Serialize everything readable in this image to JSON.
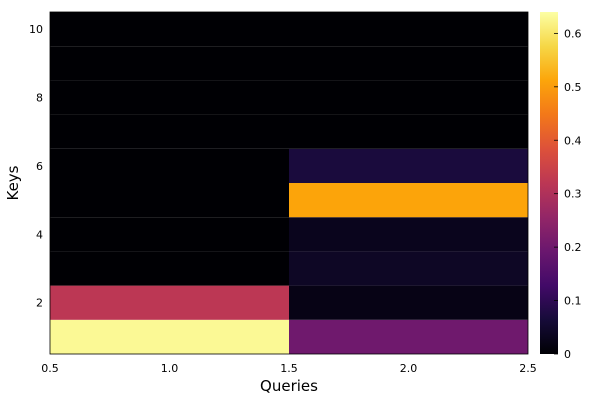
{
  "chart_data": {
    "type": "heatmap",
    "title": "",
    "xlabel": "Queries",
    "ylabel": "Keys",
    "x_columns": [
      1,
      2
    ],
    "y_rows": [
      1,
      2,
      3,
      4,
      5,
      6,
      7,
      8,
      9,
      10
    ],
    "xlim": [
      0.5,
      2.5
    ],
    "ylim": [
      0.5,
      10.5
    ],
    "x_ticks": [
      "0.5",
      "1.0",
      "1.5",
      "2.0",
      "2.5"
    ],
    "x_tick_values": [
      0.5,
      1.0,
      1.5,
      2.0,
      2.5
    ],
    "y_ticks": [
      "2",
      "4",
      "6",
      "8",
      "10"
    ],
    "y_tick_values": [
      2,
      4,
      6,
      8,
      10
    ],
    "values": [
      [
        0.63,
        0.2
      ],
      [
        0.32,
        0.02
      ],
      [
        0.0,
        0.04
      ],
      [
        0.0,
        0.03
      ],
      [
        0.0,
        0.51
      ],
      [
        0.0,
        0.07
      ],
      [
        0.0,
        0.0
      ],
      [
        0.0,
        0.0
      ],
      [
        0.0,
        0.0
      ],
      [
        0.0,
        0.0
      ]
    ],
    "colormap": "inferno",
    "colorbar_range": [
      0,
      0.64
    ],
    "colorbar_ticks": [
      "0",
      "0.1",
      "0.2",
      "0.3",
      "0.4",
      "0.5",
      "0.6"
    ],
    "colorbar_tick_values": [
      0,
      0.1,
      0.2,
      0.3,
      0.4,
      0.5,
      0.6
    ],
    "grid": false,
    "colorbar_position": "right"
  }
}
